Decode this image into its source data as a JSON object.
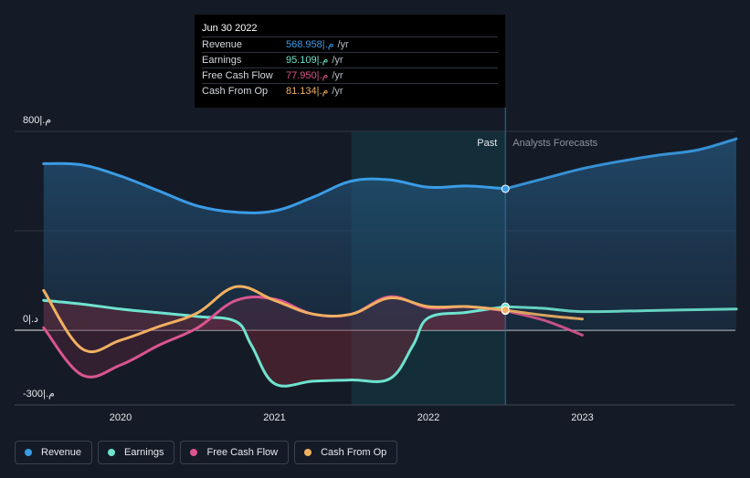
{
  "tooltip": {
    "date": "Jun 30 2022",
    "rows": [
      {
        "label": "Revenue",
        "value": "568.958|.م",
        "unit": "/yr",
        "color": "#3a9ce6"
      },
      {
        "label": "Earnings",
        "value": "95.109|.م",
        "unit": "/yr",
        "color": "#6fe3cf"
      },
      {
        "label": "Free Cash Flow",
        "value": "77.950|.م",
        "unit": "/yr",
        "color": "#d9558f"
      },
      {
        "label": "Cash From Op",
        "value": "81.134|.م",
        "unit": "/yr",
        "color": "#f0b061"
      }
    ]
  },
  "zones": {
    "past": "Past",
    "forecast": "Analysts Forecasts"
  },
  "legend": [
    {
      "label": "Revenue",
      "color": "#3a9ce6"
    },
    {
      "label": "Earnings",
      "color": "#6fe3cf"
    },
    {
      "label": "Free Cash Flow",
      "color": "#d9558f"
    },
    {
      "label": "Cash From Op",
      "color": "#f0b061"
    }
  ],
  "chart_data": {
    "type": "line",
    "title": "",
    "xlabel": "",
    "ylabel": "",
    "xlim": [
      2019.4,
      2024.0
    ],
    "ylim": [
      -300,
      800
    ],
    "yticks": [
      {
        "value": 800,
        "label": "800|.م"
      },
      {
        "value": 0,
        "label": "0|.د"
      },
      {
        "value": -300,
        "label": "-300|.م"
      }
    ],
    "xticks": [
      {
        "value": 2020,
        "label": "2020"
      },
      {
        "value": 2021,
        "label": "2021"
      },
      {
        "value": 2022,
        "label": "2022"
      },
      {
        "value": 2023,
        "label": "2023"
      }
    ],
    "past_shade": [
      2021.5,
      2022.5
    ],
    "cursor_x": 2022.5,
    "series": [
      {
        "name": "Revenue",
        "color": "#3a9ce6",
        "past": [
          [
            2019.5,
            670
          ],
          [
            2019.75,
            665
          ],
          [
            2020.0,
            620
          ],
          [
            2020.25,
            560
          ],
          [
            2020.5,
            500
          ],
          [
            2020.75,
            475
          ],
          [
            2021.0,
            480
          ],
          [
            2021.25,
            535
          ],
          [
            2021.5,
            600
          ],
          [
            2021.75,
            605
          ],
          [
            2022.0,
            575
          ],
          [
            2022.25,
            580
          ],
          [
            2022.5,
            569
          ]
        ],
        "forecast": [
          [
            2022.5,
            569
          ],
          [
            2022.75,
            610
          ],
          [
            2023.0,
            650
          ],
          [
            2023.25,
            680
          ],
          [
            2023.5,
            705
          ],
          [
            2023.75,
            725
          ],
          [
            2024.0,
            770
          ]
        ]
      },
      {
        "name": "Earnings",
        "color": "#6fe3cf",
        "past": [
          [
            2019.5,
            120
          ],
          [
            2019.75,
            105
          ],
          [
            2020.0,
            85
          ],
          [
            2020.25,
            70
          ],
          [
            2020.5,
            55
          ],
          [
            2020.75,
            35
          ],
          [
            2020.85,
            -60
          ],
          [
            2021.0,
            -215
          ],
          [
            2021.25,
            -205
          ],
          [
            2021.5,
            -200
          ],
          [
            2021.75,
            -195
          ],
          [
            2021.9,
            -60
          ],
          [
            2022.0,
            50
          ],
          [
            2022.25,
            72
          ],
          [
            2022.5,
            95
          ]
        ],
        "forecast": [
          [
            2022.5,
            95
          ],
          [
            2022.75,
            88
          ],
          [
            2023.0,
            75
          ],
          [
            2023.5,
            80
          ],
          [
            2024.0,
            85
          ]
        ]
      },
      {
        "name": "Free Cash Flow",
        "color": "#d9558f",
        "past": [
          [
            2019.5,
            10
          ],
          [
            2019.75,
            -180
          ],
          [
            2020.0,
            -140
          ],
          [
            2020.25,
            -60
          ],
          [
            2020.5,
            10
          ],
          [
            2020.75,
            120
          ],
          [
            2021.0,
            125
          ],
          [
            2021.25,
            65
          ],
          [
            2021.5,
            65
          ],
          [
            2021.75,
            135
          ],
          [
            2022.0,
            90
          ],
          [
            2022.25,
            95
          ],
          [
            2022.5,
            78
          ]
        ],
        "forecast": [
          [
            2022.5,
            78
          ],
          [
            2022.75,
            40
          ],
          [
            2023.0,
            -20
          ]
        ]
      },
      {
        "name": "Cash From Op",
        "color": "#f0b061",
        "past": [
          [
            2019.5,
            160
          ],
          [
            2019.75,
            -75
          ],
          [
            2020.0,
            -40
          ],
          [
            2020.25,
            15
          ],
          [
            2020.5,
            70
          ],
          [
            2020.75,
            175
          ],
          [
            2021.0,
            120
          ],
          [
            2021.25,
            65
          ],
          [
            2021.5,
            65
          ],
          [
            2021.75,
            130
          ],
          [
            2022.0,
            95
          ],
          [
            2022.25,
            95
          ],
          [
            2022.5,
            81
          ]
        ],
        "forecast": [
          [
            2022.5,
            81
          ],
          [
            2022.75,
            60
          ],
          [
            2023.0,
            45
          ]
        ]
      }
    ]
  }
}
